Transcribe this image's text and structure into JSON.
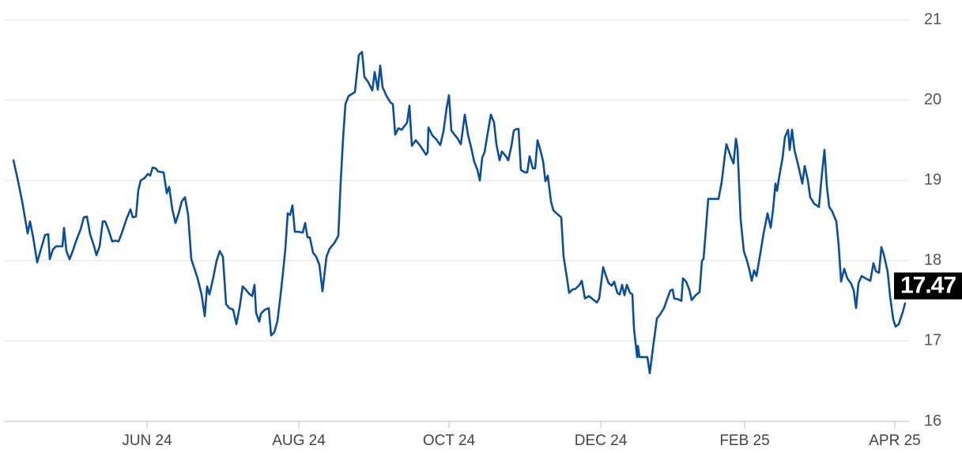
{
  "chart_data": {
    "type": "line",
    "x": [
      17,
      22,
      28,
      35,
      38,
      42,
      47,
      52,
      57,
      61,
      63,
      67,
      71,
      77,
      79,
      81,
      84,
      88,
      92,
      96,
      102,
      106,
      110,
      114,
      119,
      122,
      126,
      130,
      133,
      137,
      142,
      146,
      150,
      155,
      160,
      165,
      168,
      172,
      175,
      178,
      183,
      187,
      190,
      193,
      197,
      200,
      207,
      211,
      214,
      218,
      222,
      226,
      230,
      234,
      238,
      242,
      246,
      250,
      255,
      259,
      262,
      265,
      270,
      274,
      278,
      282,
      286,
      290,
      295,
      299,
      303,
      307,
      311,
      315,
      319,
      322,
      324,
      328,
      330,
      335,
      340,
      343,
      347,
      351,
      355,
      358,
      361,
      364,
      367,
      370,
      373,
      378,
      383,
      386,
      389,
      392,
      396,
      400,
      404,
      408,
      413,
      417,
      423,
      428,
      431,
      434,
      437,
      441,
      449,
      454,
      458,
      461,
      466,
      471,
      474,
      478,
      481,
      484,
      489,
      494,
      497,
      500,
      504,
      508,
      512,
      515,
      518,
      521,
      526,
      531,
      535,
      539,
      541,
      542,
      547,
      552,
      557,
      561,
      565,
      568,
      571,
      575,
      579,
      583,
      588,
      592,
      596,
      600,
      604,
      607,
      610,
      613,
      617,
      621,
      625,
      628,
      632,
      635,
      640,
      643,
      647,
      650,
      653,
      656,
      659,
      664,
      667,
      670,
      674,
      677,
      680,
      683,
      687,
      690,
      693,
      697,
      700,
      704,
      710,
      713,
      717,
      720,
      724,
      728,
      733,
      736,
      740,
      745,
      750,
      755,
      758,
      763,
      767,
      770,
      774,
      777,
      781,
      784,
      787,
      790,
      793,
      797,
      800,
      802,
      806,
      807,
      809,
      813,
      819,
      822,
      826,
      831,
      835,
      840,
      845,
      848,
      851,
      853,
      858,
      862,
      864,
      868,
      872,
      875,
      880,
      885,
      888,
      890,
      893,
      896,
      902,
      909,
      913,
      917,
      919,
      925,
      928,
      931,
      933,
      937,
      941,
      945,
      948,
      951,
      954,
      957,
      962,
      966,
      971,
      975,
      978,
      981,
      983,
      986,
      990,
      993,
      997,
      999,
      1002,
      1005,
      1010,
      1015,
      1018,
      1022,
      1025,
      1030,
      1036,
      1040,
      1043,
      1046,
      1049,
      1053,
      1058,
      1061,
      1064,
      1068,
      1072,
      1077,
      1080,
      1083,
      1086,
      1090,
      1095,
      1101,
      1105,
      1108,
      1112,
      1115,
      1118,
      1123,
      1126,
      1130,
      1133,
      1137,
      1142,
      1145
    ],
    "values": [
      19.25,
      19.03,
      18.74,
      18.34,
      18.49,
      18.29,
      17.98,
      18.15,
      18.32,
      18.33,
      18.02,
      18.14,
      18.18,
      18.18,
      18.18,
      18.41,
      18.12,
      18.02,
      18.12,
      18.24,
      18.39,
      18.54,
      18.55,
      18.33,
      18.18,
      18.07,
      18.18,
      18.49,
      18.49,
      18.39,
      18.24,
      18.25,
      18.24,
      18.37,
      18.52,
      18.64,
      18.54,
      18.55,
      18.88,
      19.0,
      19.03,
      19.08,
      19.06,
      19.16,
      19.15,
      19.11,
      19.1,
      18.84,
      18.92,
      18.64,
      18.47,
      18.59,
      18.74,
      18.79,
      18.57,
      18.02,
      17.9,
      17.78,
      17.58,
      17.31,
      17.68,
      17.58,
      17.8,
      18.0,
      18.12,
      18.05,
      17.46,
      17.41,
      17.39,
      17.21,
      17.41,
      17.68,
      17.64,
      17.59,
      17.56,
      17.7,
      17.35,
      17.24,
      17.34,
      17.39,
      17.41,
      17.07,
      17.11,
      17.25,
      17.58,
      17.85,
      18.15,
      18.59,
      18.57,
      18.69,
      18.36,
      18.36,
      18.35,
      18.47,
      18.29,
      18.29,
      18.1,
      18.05,
      17.95,
      17.62,
      18.05,
      18.15,
      18.22,
      18.31,
      18.98,
      19.52,
      19.95,
      20.05,
      20.1,
      20.56,
      20.6,
      20.29,
      20.22,
      20.12,
      20.35,
      20.13,
      20.43,
      20.16,
      20.05,
      19.97,
      19.95,
      19.57,
      19.65,
      19.63,
      19.68,
      19.72,
      19.93,
      19.43,
      19.5,
      19.44,
      19.38,
      19.32,
      19.35,
      19.66,
      19.56,
      19.51,
      19.44,
      19.61,
      19.9,
      20.06,
      19.62,
      19.57,
      19.52,
      19.45,
      19.82,
      19.57,
      19.41,
      19.23,
      19.13,
      19.0,
      19.28,
      19.35,
      19.59,
      19.82,
      19.72,
      19.45,
      19.25,
      19.36,
      19.3,
      19.25,
      19.43,
      19.62,
      19.64,
      19.64,
      19.13,
      19.1,
      19.1,
      19.3,
      19.15,
      19.15,
      19.5,
      19.4,
      19.24,
      18.99,
      19.06,
      18.74,
      18.63,
      18.59,
      18.54,
      18.05,
      17.8,
      17.6,
      17.64,
      17.65,
      17.7,
      17.75,
      17.53,
      17.56,
      17.52,
      17.48,
      17.53,
      17.92,
      17.8,
      17.72,
      17.69,
      17.74,
      17.6,
      17.58,
      17.7,
      17.57,
      17.7,
      17.6,
      17.58,
      17.16,
      16.8,
      16.94,
      16.8,
      16.8,
      16.8,
      16.6,
      16.91,
      17.28,
      17.33,
      17.41,
      17.55,
      17.63,
      17.64,
      17.53,
      17.52,
      17.5,
      17.78,
      17.74,
      17.64,
      17.51,
      17.57,
      17.61,
      18.0,
      18.02,
      18.39,
      18.77,
      18.77,
      18.77,
      18.98,
      19.31,
      19.45,
      19.28,
      19.21,
      19.52,
      19.4,
      18.51,
      18.12,
      18.0,
      17.89,
      17.75,
      17.88,
      17.81,
      18.1,
      18.34,
      18.59,
      18.41,
      18.64,
      18.96,
      18.87,
      19.06,
      19.28,
      19.54,
      19.63,
      19.38,
      19.63,
      19.38,
      19.18,
      18.96,
      19.18,
      19.0,
      18.79,
      18.71,
      18.67,
      19.1,
      19.38,
      18.93,
      18.67,
      18.61,
      18.49,
      18.19,
      17.74,
      17.9,
      17.78,
      17.71,
      17.63,
      17.41,
      17.72,
      17.81,
      17.78,
      17.75,
      17.97,
      17.87,
      17.85,
      18.17,
      18.08,
      17.86,
      17.56,
      17.27,
      17.18,
      17.21,
      17.36,
      17.47
    ],
    "color": "#0b4f9c",
    "xlim": [
      5,
      1150
    ],
    "xticks": [
      {
        "value": 186,
        "label": "JUN 24"
      },
      {
        "value": 378,
        "label": "AUG 24"
      },
      {
        "value": 568,
        "label": "OCT 24"
      },
      {
        "value": 760,
        "label": "DEC 24"
      },
      {
        "value": 942,
        "label": "FEB 25"
      },
      {
        "value": 1132,
        "label": "APR 25"
      }
    ],
    "ylim": [
      16,
      21
    ],
    "yticks": [
      16,
      17,
      18,
      19,
      20,
      21
    ],
    "grid": true
  }
}
